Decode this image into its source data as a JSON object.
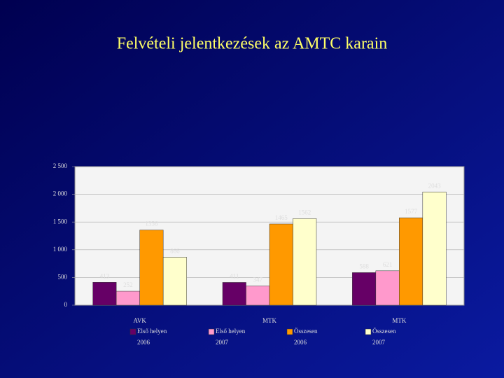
{
  "chart_data": {
    "type": "bar",
    "title": "Felvételi jelentkezések az AMTC karain",
    "categories": [
      "AVK",
      "MTK",
      "MTK"
    ],
    "series": [
      {
        "name": "Első helyen",
        "year": "2006",
        "color": "#660066",
        "values": [
          413,
          411,
          588
        ]
      },
      {
        "name": "Első helyen",
        "year": "2007",
        "color": "#ff99cc",
        "values": [
          252,
          347,
          621
        ]
      },
      {
        "name": "Összesen",
        "year": "2006",
        "color": "#ff9900",
        "values": [
          1356,
          1465,
          1577
        ]
      },
      {
        "name": "Összesen",
        "year": "2007",
        "color": "#ffffcc",
        "values": [
          866,
          1562,
          2043
        ]
      }
    ],
    "ylim": [
      0,
      2500
    ],
    "yticks": [
      0,
      500,
      {
        "value": 1000,
        "label": "1 000"
      },
      {
        "value": 1500,
        "label": "1 500"
      },
      {
        "value": 2000,
        "label": "2 000"
      },
      {
        "value": 2500,
        "label": "2 500"
      }
    ],
    "grid": true
  }
}
